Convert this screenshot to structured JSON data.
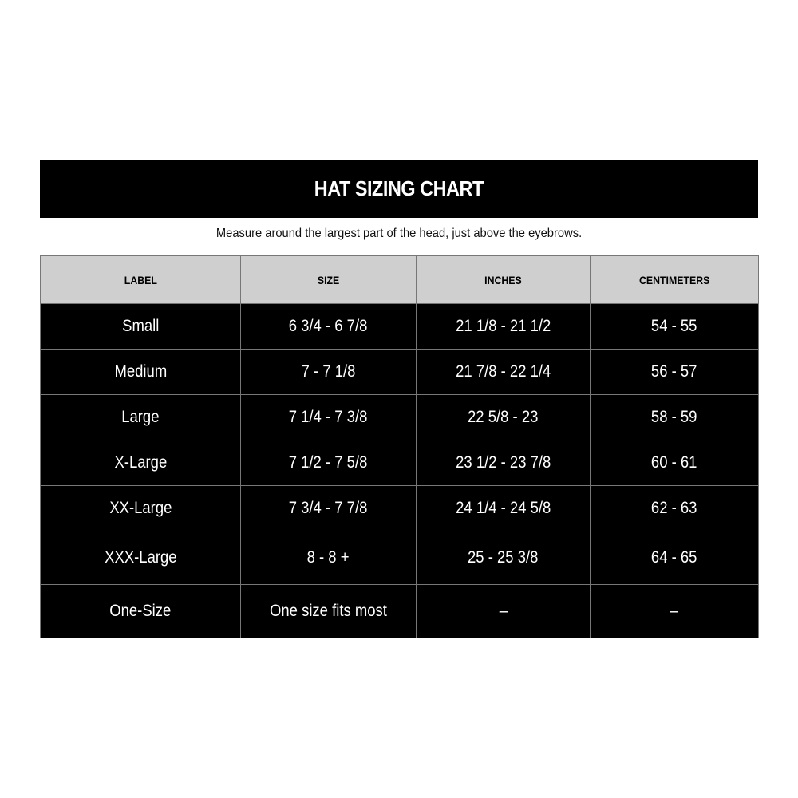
{
  "title": "HAT SIZING CHART",
  "subtitle": "Measure around the largest part of the head, just above the eyebrows.",
  "colors": {
    "title_bg": "#000000",
    "header_bg": "#cfcfcf",
    "row_bg": "#000000",
    "row_text": "#ffffff"
  },
  "table": {
    "headers": [
      "LABEL",
      "SIZE",
      "INCHES",
      "CENTIMETERS"
    ],
    "rows": [
      [
        "Small",
        "6 3/4 - 6 7/8",
        "21 1/8 - 21 1/2",
        "54 - 55"
      ],
      [
        "Medium",
        "7 - 7 1/8",
        "21 7/8 - 22 1/4",
        "56 - 57"
      ],
      [
        "Large",
        "7 1/4 - 7 3/8",
        "22 5/8 - 23",
        "58 - 59"
      ],
      [
        "X-Large",
        "7 1/2 - 7 5/8",
        "23 1/2 - 23 7/8",
        "60 - 61"
      ],
      [
        "XX-Large",
        "7 3/4 - 7 7/8",
        "24 1/4 - 24 5/8",
        "62 - 63"
      ],
      [
        "XXX-Large",
        "8 - 8 +",
        "25 - 25 3/8",
        "64 - 65"
      ],
      [
        "One-Size",
        "One size fits most",
        "–",
        "–"
      ]
    ]
  }
}
